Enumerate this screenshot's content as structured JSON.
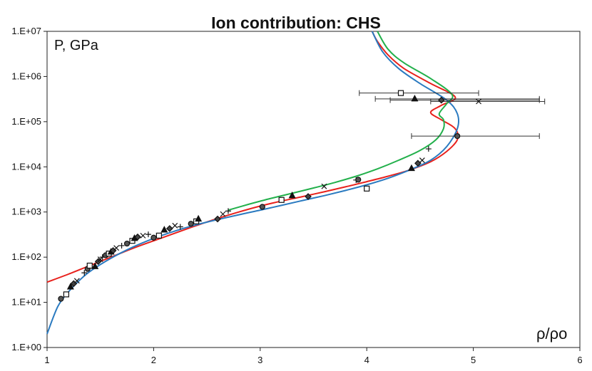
{
  "chart_data": {
    "type": "scatter",
    "title": "Ion contribution: CHS",
    "xlabel": "ρ/ρo",
    "ylabel": "P, GPa",
    "xlim": [
      1,
      6
    ],
    "ylim_log10": [
      0,
      7
    ],
    "yscale": "log",
    "x_ticks": [
      "1",
      "2",
      "3",
      "4",
      "5",
      "6"
    ],
    "y_ticks": [
      "1.E+00",
      "1.E+01",
      "1.E+02",
      "1.E+03",
      "1.E+04",
      "1.E+05",
      "1.E+06",
      "1.E+07"
    ],
    "grid": false,
    "colors": {
      "red": "#e8211c",
      "blue": "#2a7ac0",
      "green": "#22b04b",
      "markers": "#111111"
    },
    "series": [
      {
        "color": "red",
        "points": [
          [
            1.0,
            28
          ],
          [
            1.2,
            42
          ],
          [
            1.4,
            65
          ],
          [
            1.6,
            100
          ],
          [
            1.8,
            155
          ],
          [
            2.0,
            230
          ],
          [
            2.2,
            340
          ],
          [
            2.4,
            500
          ],
          [
            2.6,
            720
          ],
          [
            2.8,
            1000
          ],
          [
            3.0,
            1350
          ],
          [
            3.2,
            1750
          ],
          [
            3.4,
            2200
          ],
          [
            3.6,
            2800
          ],
          [
            3.8,
            3600
          ],
          [
            4.0,
            4700
          ],
          [
            4.2,
            6200
          ],
          [
            4.4,
            8500
          ],
          [
            4.6,
            13000
          ],
          [
            4.75,
            22000
          ],
          [
            4.85,
            40000
          ],
          [
            4.83,
            70000
          ],
          [
            4.7,
            110000
          ],
          [
            4.6,
            160000
          ],
          [
            4.7,
            230000
          ],
          [
            4.83,
            350000
          ],
          [
            4.6,
            700000
          ],
          [
            4.35,
            1500000
          ],
          [
            4.2,
            3000000
          ],
          [
            4.1,
            6000000
          ],
          [
            4.05,
            10000000
          ]
        ]
      },
      {
        "color": "blue",
        "points": [
          [
            1.0,
            2.0
          ],
          [
            1.1,
            8
          ],
          [
            1.2,
            17
          ],
          [
            1.3,
            30
          ],
          [
            1.4,
            48
          ],
          [
            1.6,
            95
          ],
          [
            1.8,
            165
          ],
          [
            2.0,
            260
          ],
          [
            2.2,
            380
          ],
          [
            2.4,
            520
          ],
          [
            2.6,
            680
          ],
          [
            2.8,
            870
          ],
          [
            3.0,
            1100
          ],
          [
            3.2,
            1400
          ],
          [
            3.4,
            1800
          ],
          [
            3.6,
            2300
          ],
          [
            3.8,
            3000
          ],
          [
            4.0,
            4000
          ],
          [
            4.2,
            5600
          ],
          [
            4.4,
            8500
          ],
          [
            4.6,
            14000
          ],
          [
            4.75,
            28000
          ],
          [
            4.85,
            70000
          ],
          [
            4.85,
            150000
          ],
          [
            4.75,
            300000
          ],
          [
            4.5,
            700000
          ],
          [
            4.3,
            1500000
          ],
          [
            4.15,
            3500000
          ],
          [
            4.05,
            10000000
          ]
        ]
      },
      {
        "color": "green",
        "points": [
          [
            2.7,
            1100
          ],
          [
            2.9,
            1500
          ],
          [
            3.1,
            2000
          ],
          [
            3.3,
            2600
          ],
          [
            3.5,
            3400
          ],
          [
            3.7,
            4500
          ],
          [
            3.9,
            6200
          ],
          [
            4.1,
            9000
          ],
          [
            4.3,
            14000
          ],
          [
            4.5,
            23000
          ],
          [
            4.65,
            40000
          ],
          [
            4.72,
            70000
          ],
          [
            4.72,
            110000
          ],
          [
            4.68,
            150000
          ],
          [
            4.75,
            250000
          ],
          [
            4.8,
            400000
          ],
          [
            4.6,
            900000
          ],
          [
            4.35,
            2000000
          ],
          [
            4.2,
            4000000
          ],
          [
            4.1,
            10000000
          ]
        ]
      },
      {
        "color": "markers",
        "points": [
          [
            1.13,
            12
          ],
          [
            1.18,
            15
          ],
          [
            1.22,
            22
          ],
          [
            1.25,
            26
          ],
          [
            1.28,
            30
          ],
          [
            1.35,
            45
          ],
          [
            1.38,
            55
          ],
          [
            1.4,
            65
          ],
          [
            1.45,
            62
          ],
          [
            1.48,
            80
          ],
          [
            1.5,
            90
          ],
          [
            1.52,
            100
          ],
          [
            1.55,
            110
          ],
          [
            1.58,
            120
          ],
          [
            1.6,
            130
          ],
          [
            1.62,
            140
          ],
          [
            1.65,
            160
          ],
          [
            1.7,
            180
          ],
          [
            1.75,
            200
          ],
          [
            1.8,
            230
          ],
          [
            1.82,
            260
          ],
          [
            1.85,
            280
          ],
          [
            1.9,
            300
          ],
          [
            1.95,
            320
          ],
          [
            2.0,
            270
          ],
          [
            2.05,
            300
          ],
          [
            2.1,
            400
          ],
          [
            2.15,
            430
          ],
          [
            2.2,
            500
          ],
          [
            2.25,
            470
          ],
          [
            2.35,
            550
          ],
          [
            2.4,
            620
          ],
          [
            2.42,
            700
          ],
          [
            2.6,
            700
          ],
          [
            2.65,
            900
          ],
          [
            2.7,
            1050
          ],
          [
            3.02,
            1300
          ],
          [
            3.2,
            1850
          ],
          [
            3.3,
            2300
          ],
          [
            3.45,
            2200
          ],
          [
            3.6,
            3700
          ],
          [
            3.9,
            5100
          ],
          [
            3.92,
            5200
          ],
          [
            4.0,
            3300
          ],
          [
            4.42,
            9200
          ],
          [
            4.48,
            12000
          ],
          [
            4.52,
            14000
          ],
          [
            4.58,
            25000
          ],
          [
            4.85,
            48000
          ],
          [
            4.32,
            430000
          ],
          [
            4.45,
            320000
          ],
          [
            4.7,
            300000
          ],
          [
            5.05,
            280000
          ]
        ]
      }
    ],
    "error_bars": [
      {
        "x": 4.32,
        "y": 430000,
        "xmin": 3.93,
        "xmax": 5.05
      },
      {
        "x": 4.45,
        "y": 320000,
        "xmin": 4.08,
        "xmax": 5.62
      },
      {
        "x": 4.7,
        "y": 300000,
        "xmin": 4.22,
        "xmax": 5.62
      },
      {
        "x": 5.05,
        "y": 280000,
        "xmin": 4.6,
        "xmax": 5.67
      },
      {
        "x": 4.85,
        "y": 48000,
        "xmin": 4.42,
        "xmax": 5.62
      }
    ]
  }
}
